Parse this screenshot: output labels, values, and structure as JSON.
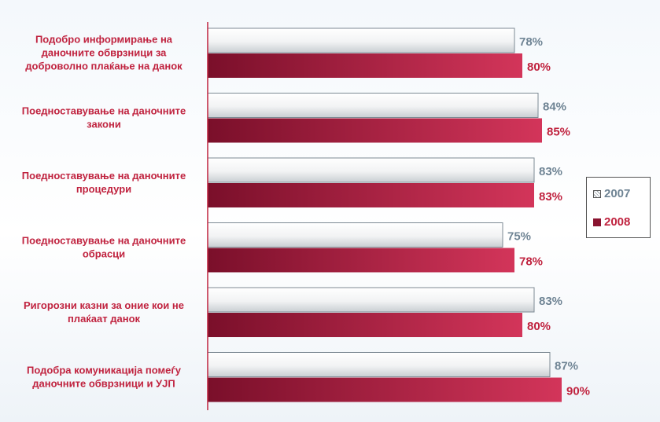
{
  "chart_data": {
    "type": "bar",
    "orientation": "horizontal",
    "categories": [
      [
        "Подобро информирање на",
        "даночните обврзници за",
        "доброволно плаќање на данок"
      ],
      [
        "Поедноставување на даночните",
        "закони"
      ],
      [
        "Поедноставување на даночните",
        "процедури"
      ],
      [
        "Поедноставување на даночните",
        "обрасци"
      ],
      [
        "Ригорозни казни за оние кои не",
        "плаќаат данок"
      ],
      [
        "Подобра комуникација помеѓу",
        "даночните обврзници и УЈП"
      ]
    ],
    "series": [
      {
        "name": "2007",
        "values": [
          78,
          84,
          83,
          75,
          83,
          87
        ],
        "labels": [
          "78%",
          "84%",
          "83%",
          "75%",
          "83%",
          "87%"
        ]
      },
      {
        "name": "2008",
        "values": [
          80,
          85,
          83,
          78,
          80,
          90
        ],
        "labels": [
          "80%",
          "85%",
          "83%",
          "78%",
          "80%",
          "90%"
        ]
      }
    ],
    "xlim": [
      0,
      100
    ],
    "legend_position": "right",
    "grid": false
  },
  "colors": {
    "series_2007_text": "#6f8494",
    "series_2008_text": "#c0233f",
    "series_2008_bar": "#9a1838",
    "axis": "#c0233f",
    "category_text": "#c0233f"
  }
}
